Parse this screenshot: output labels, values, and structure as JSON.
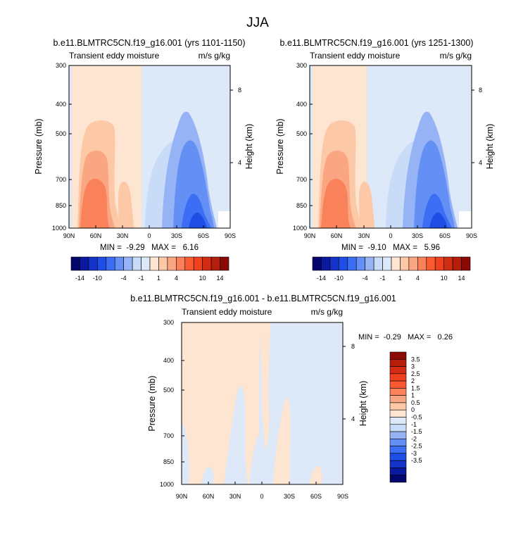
{
  "page_title": "JJA",
  "palette": {
    "neg": [
      "#05056e",
      "#0a1aa0",
      "#1432c8",
      "#1e4ee6",
      "#3c6ef5",
      "#6490f5",
      "#96b4f5",
      "#c8dcf8",
      "#dde8f8"
    ],
    "pos": [
      "#fde5d2",
      "#fcc8a6",
      "#fba682",
      "#fa825a",
      "#f95a32",
      "#f0411e",
      "#d22d14",
      "#b41e0a",
      "#8c0a05"
    ]
  },
  "chart_data": [
    {
      "type": "contour",
      "title": "b.e11.BLMTRC5CN.f19_g16.001 (yrs 1101-1150)",
      "left_label": "Transient eddy moisture",
      "right_label": "m/s g/kg",
      "xlabel": "",
      "ylabel": "Pressure (mb)",
      "y2label": "Height (km)",
      "xticks": [
        "90N",
        "60N",
        "30N",
        "0",
        "30S",
        "60S",
        "90S"
      ],
      "yticks": [
        "300",
        "400",
        "500",
        "700",
        "850",
        "1000"
      ],
      "y2ticks": [
        "8",
        "4"
      ],
      "stats": "MIN =  -9.29   MAX =   6.16"
    },
    {
      "type": "contour",
      "title": "b.e11.BLMTRC5CN.f19_g16.001 (yrs 1251-1300)",
      "left_label": "Transient eddy moisture",
      "right_label": "m/s g/kg",
      "xlabel": "",
      "ylabel": "Pressure (mb)",
      "y2label": "Height (km)",
      "xticks": [
        "90N",
        "60N",
        "30N",
        "0",
        "30S",
        "60S",
        "90S"
      ],
      "yticks": [
        "300",
        "400",
        "500",
        "700",
        "850",
        "1000"
      ],
      "y2ticks": [
        "8",
        "4"
      ],
      "stats": "MIN =  -9.10   MAX =   5.96"
    },
    {
      "type": "contour",
      "title": "b.e11.BLMTRC5CN.f19_g16.001 - b.e11.BLMTRC5CN.f19_g16.001",
      "left_label": "Transient eddy moisture",
      "right_label": "m/s g/kg",
      "xlabel": "",
      "ylabel": "Pressure (mb)",
      "y2label": "Height (km)",
      "xticks": [
        "90N",
        "60N",
        "30N",
        "0",
        "30S",
        "60S",
        "90S"
      ],
      "yticks": [
        "300",
        "400",
        "500",
        "700",
        "850",
        "1000"
      ],
      "y2ticks": [
        "8",
        "4"
      ],
      "stats": "MIN =  -0.29   MAX =   0.26"
    }
  ],
  "colorbar_top": {
    "orientation": "horizontal",
    "labels": [
      "-14",
      "-10",
      "-4",
      "-1",
      "1",
      "4",
      "10",
      "14"
    ]
  },
  "colorbar_diff": {
    "orientation": "vertical",
    "labels": [
      "3.5",
      "3",
      "2.5",
      "2",
      "1.5",
      "1",
      "0.5",
      "0",
      "-0.5",
      "-1",
      "-1.5",
      "-2",
      "-2.5",
      "-3",
      "-3.5"
    ]
  }
}
